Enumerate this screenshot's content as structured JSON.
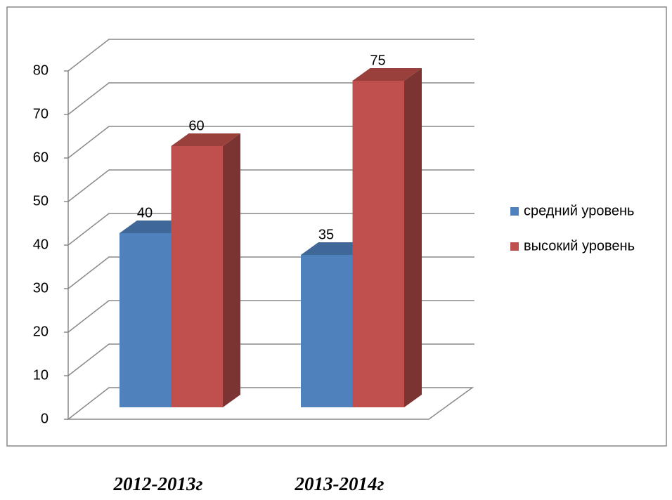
{
  "chart_data": {
    "type": "bar3d",
    "categories": [
      "2012-2013г",
      "2013-2014г"
    ],
    "series": [
      {
        "name": "средний уровень",
        "color": "#4f81bd",
        "values": [
          40,
          35
        ]
      },
      {
        "name": "высокий уровень",
        "color": "#c0504d",
        "values": [
          60,
          75
        ]
      }
    ],
    "ylim": [
      0,
      80
    ],
    "yticks": [
      0,
      10,
      20,
      30,
      40,
      50,
      60,
      70,
      80
    ],
    "grid": true,
    "legend": "right"
  }
}
